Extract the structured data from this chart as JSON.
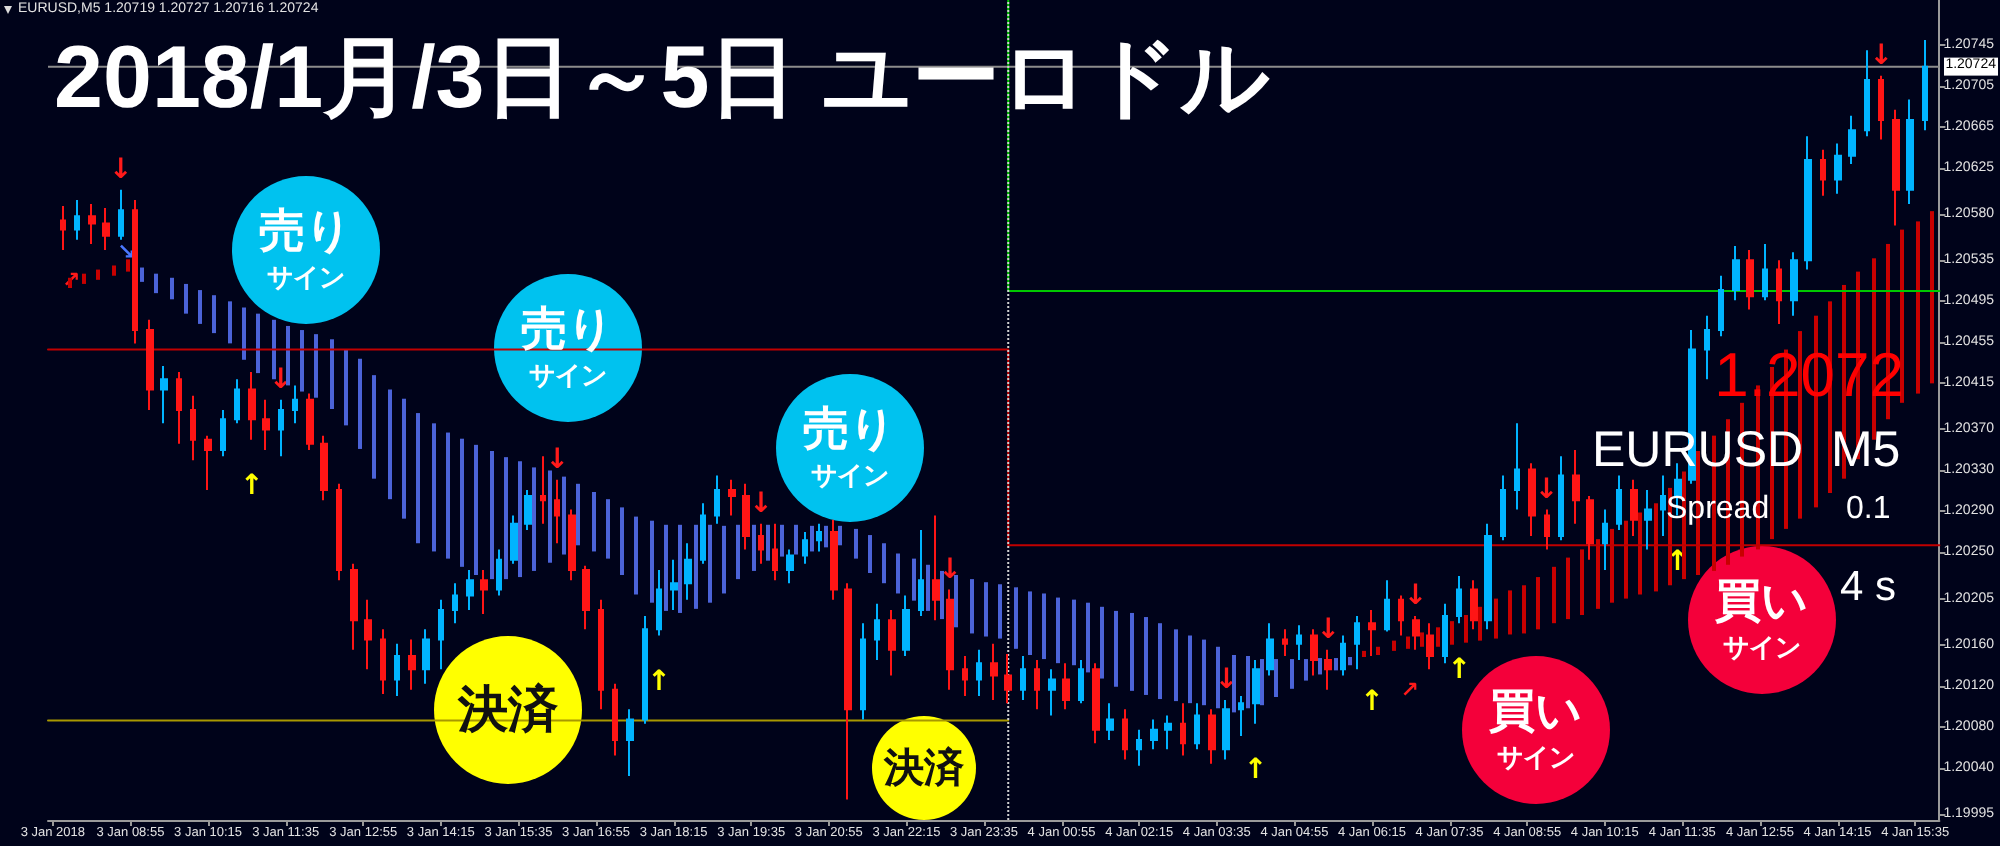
{
  "chart_data": {
    "type": "candlestick",
    "title": "2018/1月/3日～5日 ユーロドル",
    "x": [
      "2018-01-03T07:45",
      "2018-01-03T08:00",
      "2018-01-03T08:15",
      "2018-01-03T08:30",
      "2018-01-03T08:45",
      "2018-01-03T09:00",
      "2018-01-03T09:15",
      "2018-01-03T09:30",
      "2018-01-03T09:45",
      "2018-01-03T10:00",
      "2018-01-03T10:15",
      "2018-01-03T10:30",
      "2018-01-03T10:45",
      "2018-01-03T11:00",
      "2018-01-03T11:15",
      "2018-01-03T11:30",
      "2018-01-03T11:45",
      "2018-01-03T12:00",
      "2018-01-03T12:15",
      "2018-01-03T12:30",
      "2018-01-03T12:45",
      "2018-01-03T13:00",
      "2018-01-03T13:15",
      "2018-01-03T13:30",
      "2018-01-03T13:45",
      "2018-01-03T14:00",
      "2018-01-03T14:15",
      "2018-01-03T14:30",
      "2018-01-03T14:45",
      "2018-01-03T15:00",
      "2018-01-03T15:15",
      "2018-01-03T15:30",
      "2018-01-03T15:45",
      "2018-01-03T16:00",
      "2018-01-03T16:15",
      "2018-01-03T16:30",
      "2018-01-03T16:45",
      "2018-01-03T17:00",
      "2018-01-03T17:15",
      "2018-01-03T17:30",
      "2018-01-03T17:45",
      "2018-01-03T18:00",
      "2018-01-03T18:15",
      "2018-01-03T18:30",
      "2018-01-03T18:45",
      "2018-01-03T19:00",
      "2018-01-03T19:15",
      "2018-01-03T19:30",
      "2018-01-03T19:45",
      "2018-01-03T20:00",
      "2018-01-03T20:15",
      "2018-01-03T20:30",
      "2018-01-03T20:45",
      "2018-01-03T21:00",
      "2018-01-03T21:15",
      "2018-01-03T21:30",
      "2018-01-03T21:45",
      "2018-01-03T22:00",
      "2018-01-03T22:15",
      "2018-01-03T22:30",
      "2018-01-03T22:45",
      "2018-01-03T23:00",
      "2018-01-03T23:15",
      "2018-01-03T23:30",
      "2018-01-03T23:45",
      "2018-01-04T00:00",
      "2018-01-04T00:15",
      "2018-01-04T00:30",
      "2018-01-04T00:45",
      "2018-01-04T01:00",
      "2018-01-04T01:15",
      "2018-01-04T01:30",
      "2018-01-04T01:45",
      "2018-01-04T02:00",
      "2018-01-04T02:15",
      "2018-01-04T02:30",
      "2018-01-04T02:45",
      "2018-01-04T03:00",
      "2018-01-04T03:15",
      "2018-01-04T03:30",
      "2018-01-04T03:45",
      "2018-01-04T04:00",
      "2018-01-04T04:15",
      "2018-01-04T04:30",
      "2018-01-04T04:45",
      "2018-01-04T05:00",
      "2018-01-04T05:15",
      "2018-01-04T05:30",
      "2018-01-04T05:45",
      "2018-01-04T06:00",
      "2018-01-04T06:15",
      "2018-01-04T06:30",
      "2018-01-04T06:45",
      "2018-01-04T07:00",
      "2018-01-04T07:15",
      "2018-01-04T07:30",
      "2018-01-04T07:45",
      "2018-01-04T08:00",
      "2018-01-04T08:15",
      "2018-01-04T08:30",
      "2018-01-04T08:45",
      "2018-01-04T09:00",
      "2018-01-04T09:15",
      "2018-01-04T09:30",
      "2018-01-04T09:45",
      "2018-01-04T10:00",
      "2018-01-04T10:15",
      "2018-01-04T10:30",
      "2018-01-04T10:45",
      "2018-01-04T11:00",
      "2018-01-04T11:15",
      "2018-01-04T11:30",
      "2018-01-04T11:45",
      "2018-01-04T12:00",
      "2018-01-04T12:15",
      "2018-01-04T12:30",
      "2018-01-04T12:45",
      "2018-01-04T13:00",
      "2018-01-04T13:15",
      "2018-01-04T13:30",
      "2018-01-04T13:45",
      "2018-01-04T14:00",
      "2018-01-04T14:15",
      "2018-01-04T14:30",
      "2018-01-04T14:45",
      "2018-01-04T15:00",
      "2018-01-04T15:15",
      "2018-01-04T15:30",
      "2018-01-04T15:45"
    ],
    "ohlc": [
      [
        1.20574,
        1.20588,
        1.20545,
        1.20565
      ],
      [
        1.20565,
        1.20594,
        1.20555,
        1.20578
      ],
      [
        1.20578,
        1.2059,
        1.20551,
        1.20571
      ],
      [
        1.20571,
        1.20586,
        1.20545,
        1.20559
      ],
      [
        1.20559,
        1.20604,
        1.20555,
        1.20584
      ],
      [
        1.20584,
        1.20594,
        1.20454,
        1.20467
      ],
      [
        1.20467,
        1.20477,
        1.20389,
        1.20409
      ],
      [
        1.20409,
        1.20432,
        1.20376,
        1.20419
      ],
      [
        1.20419,
        1.20426,
        1.20356,
        1.20389
      ],
      [
        1.20389,
        1.20403,
        1.2034,
        1.2036
      ],
      [
        1.2036,
        1.20364,
        1.20311,
        1.2035
      ],
      [
        1.2035,
        1.20389,
        1.20344,
        1.2038
      ],
      [
        1.2038,
        1.20419,
        1.20376,
        1.20409
      ],
      [
        1.20409,
        1.20426,
        1.2036,
        1.2038
      ],
      [
        1.2038,
        1.20399,
        1.2035,
        1.2037
      ],
      [
        1.2037,
        1.20399,
        1.20344,
        1.20389
      ],
      [
        1.20389,
        1.20413,
        1.20376,
        1.20399
      ],
      [
        1.20399,
        1.20405,
        1.2035,
        1.20356
      ],
      [
        1.20356,
        1.20364,
        1.20301,
        1.20311
      ],
      [
        1.20311,
        1.20317,
        1.20223,
        1.20233
      ],
      [
        1.20233,
        1.20239,
        1.20155,
        1.20184
      ],
      [
        1.20184,
        1.20204,
        1.20136,
        1.20165
      ],
      [
        1.20165,
        1.20175,
        1.20112,
        1.20126
      ],
      [
        1.20126,
        1.20161,
        1.2011,
        1.20149
      ],
      [
        1.20149,
        1.20165,
        1.20116,
        1.20136
      ],
      [
        1.20136,
        1.20175,
        1.20122,
        1.20165
      ],
      [
        1.20165,
        1.20204,
        1.20136,
        1.20194
      ],
      [
        1.20194,
        1.2022,
        1.20181,
        1.20208
      ],
      [
        1.20208,
        1.20233,
        1.20194,
        1.20223
      ],
      [
        1.20223,
        1.20233,
        1.2019,
        1.20214
      ],
      [
        1.20214,
        1.20253,
        1.20208,
        1.20243
      ],
      [
        1.20243,
        1.20286,
        1.20239,
        1.20278
      ],
      [
        1.20278,
        1.20311,
        1.20272,
        1.20305
      ],
      [
        1.20305,
        1.20344,
        1.20278,
        1.20301
      ],
      [
        1.20301,
        1.20321,
        1.20259,
        1.20286
      ],
      [
        1.20286,
        1.20292,
        1.20223,
        1.20233
      ],
      [
        1.20233,
        1.20237,
        1.20175,
        1.20194
      ],
      [
        1.20194,
        1.20204,
        1.20097,
        1.20116
      ],
      [
        1.20116,
        1.20122,
        1.20052,
        1.20067
      ],
      [
        1.20067,
        1.20097,
        1.20032,
        1.20087
      ],
      [
        1.20087,
        1.20188,
        1.20083,
        1.20175
      ],
      [
        1.20175,
        1.20233,
        1.20169,
        1.20214
      ],
      [
        1.20214,
        1.20243,
        1.20194,
        1.2022
      ],
      [
        1.2022,
        1.20259,
        1.20204,
        1.20243
      ],
      [
        1.20243,
        1.20298,
        1.20239,
        1.20286
      ],
      [
        1.20286,
        1.20325,
        1.20278,
        1.20311
      ],
      [
        1.20311,
        1.20321,
        1.20286,
        1.20305
      ],
      [
        1.20305,
        1.20317,
        1.20253,
        1.20266
      ],
      [
        1.20266,
        1.20278,
        1.20239,
        1.20253
      ],
      [
        1.20253,
        1.20278,
        1.20223,
        1.20233
      ],
      [
        1.20233,
        1.20253,
        1.2022,
        1.20247
      ],
      [
        1.20247,
        1.2027,
        1.20239,
        1.20262
      ],
      [
        1.20262,
        1.20278,
        1.20251,
        1.2027
      ],
      [
        1.2027,
        1.20282,
        1.20204,
        1.20214
      ],
      [
        1.20214,
        1.2022,
        1.20009,
        1.20097
      ],
      [
        1.20097,
        1.20181,
        1.20087,
        1.20165
      ],
      [
        1.20165,
        1.202,
        1.20145,
        1.20184
      ],
      [
        1.20184,
        1.20194,
        1.2013,
        1.20155
      ],
      [
        1.20155,
        1.20208,
        1.20149,
        1.20194
      ],
      [
        1.20194,
        1.20272,
        1.20188,
        1.20223
      ],
      [
        1.20223,
        1.20286,
        1.20184,
        1.20204
      ],
      [
        1.20204,
        1.20214,
        1.20116,
        1.20136
      ],
      [
        1.20136,
        1.20149,
        1.2011,
        1.20126
      ],
      [
        1.20126,
        1.20155,
        1.2011,
        1.20142
      ],
      [
        1.20142,
        1.20161,
        1.20106,
        1.2013
      ],
      [
        1.2013,
        1.20151,
        1.20103,
        1.20116
      ],
      [
        1.20116,
        1.20149,
        1.20106,
        1.20136
      ],
      [
        1.20136,
        1.20145,
        1.20097,
        1.20116
      ],
      [
        1.20116,
        1.20136,
        1.20091,
        1.20126
      ],
      [
        1.20126,
        1.20142,
        1.20097,
        1.20106
      ],
      [
        1.20106,
        1.20145,
        1.20103,
        1.20136
      ],
      [
        1.20136,
        1.20142,
        1.20064,
        1.20077
      ],
      [
        1.20077,
        1.20103,
        1.20067,
        1.20087
      ],
      [
        1.20087,
        1.20097,
        1.20048,
        1.20058
      ],
      [
        1.20058,
        1.20077,
        1.20042,
        1.20067
      ],
      [
        1.20067,
        1.20087,
        1.20058,
        1.20077
      ],
      [
        1.20077,
        1.20091,
        1.20058,
        1.20083
      ],
      [
        1.20083,
        1.20103,
        1.20052,
        1.20064
      ],
      [
        1.20064,
        1.20103,
        1.20058,
        1.20091
      ],
      [
        1.20091,
        1.20097,
        1.20044,
        1.20058
      ],
      [
        1.20058,
        1.20106,
        1.20048,
        1.20097
      ],
      [
        1.20097,
        1.2011,
        1.20071,
        1.20103
      ],
      [
        1.20103,
        1.20145,
        1.20083,
        1.20136
      ],
      [
        1.20136,
        1.20181,
        1.2013,
        1.20165
      ],
      [
        1.20165,
        1.20175,
        1.20149,
        1.20161
      ],
      [
        1.20161,
        1.20179,
        1.20145,
        1.20169
      ],
      [
        1.20169,
        1.20175,
        1.2013,
        1.20145
      ],
      [
        1.20145,
        1.20155,
        1.20116,
        1.20136
      ],
      [
        1.20136,
        1.20169,
        1.2013,
        1.20161
      ],
      [
        1.20161,
        1.20188,
        1.20136,
        1.20181
      ],
      [
        1.20181,
        1.20194,
        1.20149,
        1.20175
      ],
      [
        1.20175,
        1.20223,
        1.20173,
        1.20204
      ],
      [
        1.20204,
        1.20208,
        1.20169,
        1.20184
      ],
      [
        1.20184,
        1.20188,
        1.20155,
        1.20169
      ],
      [
        1.20169,
        1.20181,
        1.20136,
        1.20149
      ],
      [
        1.20149,
        1.202,
        1.20142,
        1.20188
      ],
      [
        1.20188,
        1.20227,
        1.20181,
        1.20214
      ],
      [
        1.20214,
        1.20223,
        1.20175,
        1.20184
      ],
      [
        1.20184,
        1.20278,
        1.20175,
        1.20266
      ],
      [
        1.20266,
        1.20325,
        1.20262,
        1.20311
      ],
      [
        1.20311,
        1.20376,
        1.20292,
        1.20331
      ],
      [
        1.20331,
        1.20337,
        1.20266,
        1.20286
      ],
      [
        1.20286,
        1.20292,
        1.20253,
        1.20266
      ],
      [
        1.20266,
        1.20344,
        1.20262,
        1.20325
      ],
      [
        1.20325,
        1.2035,
        1.20278,
        1.20301
      ],
      [
        1.20301,
        1.20305,
        1.20243,
        1.20259
      ],
      [
        1.20259,
        1.20292,
        1.20233,
        1.20278
      ],
      [
        1.20278,
        1.20325,
        1.20272,
        1.20311
      ],
      [
        1.20311,
        1.20321,
        1.20266,
        1.20282
      ],
      [
        1.20282,
        1.20311,
        1.20253,
        1.20292
      ],
      [
        1.20292,
        1.20325,
        1.20266,
        1.20305
      ],
      [
        1.20305,
        1.20337,
        1.20286,
        1.20321
      ],
      [
        1.20321,
        1.20467,
        1.20317,
        1.20448
      ],
      [
        1.20448,
        1.20481,
        1.20419,
        1.20467
      ],
      [
        1.20467,
        1.2052,
        1.20461,
        1.20506
      ],
      [
        1.20506,
        1.20549,
        1.20496,
        1.20535
      ],
      [
        1.20535,
        1.20545,
        1.20487,
        1.205
      ],
      [
        1.205,
        1.20551,
        1.20496,
        1.20526
      ],
      [
        1.20526,
        1.20535,
        1.20473,
        1.20496
      ],
      [
        1.20496,
        1.20543,
        1.20481,
        1.20535
      ],
      [
        1.20535,
        1.20656,
        1.20526,
        1.20633
      ],
      [
        1.20633,
        1.20643,
        1.20598,
        1.20614
      ],
      [
        1.20614,
        1.20649,
        1.206,
        1.20637
      ],
      [
        1.20637,
        1.20676,
        1.20629,
        1.20662
      ],
      [
        1.20662,
        1.2074,
        1.20656,
        1.20711
      ],
      [
        1.20711,
        1.20715,
        1.20653,
        1.20672
      ],
      [
        1.20672,
        1.20682,
        1.20569,
        1.20604
      ],
      [
        1.20604,
        1.20692,
        1.2059,
        1.20672
      ],
      [
        1.20672,
        1.2075,
        1.20662,
        1.20724
      ]
    ],
    "series": [
      {
        "type": "bar",
        "color": "#4b63d8",
        "x": [
          "2018-01-03T09:05",
          "2018-01-03T09:20",
          "2018-01-03T09:35",
          "2018-01-03T09:50",
          "2018-01-03T10:05",
          "2018-01-03T10:20",
          "2018-01-03T10:35",
          "2018-01-03T10:50",
          "2018-01-03T11:05",
          "2018-01-03T11:20",
          "2018-01-03T11:35",
          "2018-01-03T11:50",
          "2018-01-03T12:05",
          "2018-01-03T12:20",
          "2018-01-03T12:35",
          "2018-01-03T12:50",
          "2018-01-03T13:05",
          "2018-01-03T13:20",
          "2018-01-03T13:35",
          "2018-01-03T13:50",
          "2018-01-03T14:05",
          "2018-01-03T14:20",
          "2018-01-03T14:35",
          "2018-01-03T14:50",
          "2018-01-03T15:05",
          "2018-01-03T15:20",
          "2018-01-03T15:35",
          "2018-01-03T15:50",
          "2018-01-03T16:05",
          "2018-01-03T16:20",
          "2018-01-03T16:35",
          "2018-01-03T16:50",
          "2018-01-03T17:05",
          "2018-01-03T17:20",
          "2018-01-03T17:35",
          "2018-01-03T17:50",
          "2018-01-03T18:05",
          "2018-01-03T18:20",
          "2018-01-03T18:35",
          "2018-01-03T18:50",
          "2018-01-03T19:05",
          "2018-01-03T19:20",
          "2018-01-03T19:35",
          "2018-01-03T19:50",
          "2018-01-03T20:05",
          "2018-01-03T20:20",
          "2018-01-03T20:35",
          "2018-01-03T20:50",
          "2018-01-03T21:05",
          "2018-01-03T21:20",
          "2018-01-03T21:35",
          "2018-01-03T21:50",
          "2018-01-03T22:05",
          "2018-01-03T22:20",
          "2018-01-03T22:35",
          "2018-01-03T22:50",
          "2018-01-03T23:05",
          "2018-01-03T23:20",
          "2018-01-03T23:35",
          "2018-01-03T23:50",
          "2018-01-04T00:05",
          "2018-01-04T00:20",
          "2018-01-04T00:35",
          "2018-01-04T00:50",
          "2018-01-04T01:05",
          "2018-01-04T01:20",
          "2018-01-04T01:35",
          "2018-01-04T01:50",
          "2018-01-04T02:05",
          "2018-01-04T02:20",
          "2018-01-04T02:35",
          "2018-01-04T02:50",
          "2018-01-04T03:05",
          "2018-01-04T03:20",
          "2018-01-04T03:35",
          "2018-01-04T03:50",
          "2018-01-04T04:05",
          "2018-01-04T04:20",
          "2018-01-04T04:35",
          "2018-01-04T04:50",
          "2018-01-04T05:05",
          "2018-01-04T05:20",
          "2018-01-04T05:35",
          "2018-01-04T05:50"
        ],
        "base": [
          1.20514,
          1.20503,
          1.20497,
          1.20483,
          1.20473,
          1.20464,
          1.20454,
          1.20438,
          1.20425,
          1.20419,
          1.20413,
          1.20407,
          1.20401,
          1.2039,
          1.20374,
          1.20351,
          1.20322,
          1.20302,
          1.20283,
          1.20259,
          1.20251,
          1.20244,
          1.20236,
          1.20228,
          1.20224,
          1.20224,
          1.20226,
          1.20232,
          1.2024,
          1.20248,
          1.20257,
          1.20251,
          1.20244,
          1.20228,
          1.20209,
          1.20201,
          1.20193,
          1.20191,
          1.20195,
          1.20201,
          1.2021,
          1.20224,
          1.20232,
          1.20242,
          1.20246,
          1.20248,
          1.20251,
          1.20255,
          1.20257,
          1.20244,
          1.2023,
          1.2022,
          1.2021,
          1.20203,
          1.20193,
          1.20185,
          1.20177,
          1.20171,
          1.20168,
          1.20166,
          1.20156,
          1.2015,
          1.20146,
          1.20142,
          1.2014,
          1.20133,
          1.20127,
          1.20119,
          1.20115,
          1.20111,
          1.20107,
          1.20105,
          1.20103,
          1.20101,
          1.20098,
          1.20094,
          1.20098,
          1.20101,
          1.20109,
          1.20117,
          1.20125,
          1.20131,
          1.20135,
          1.2014
        ],
        "values": [
          0.00014,
          0.00019,
          0.00021,
          0.00029,
          0.00033,
          0.00037,
          0.00041,
          0.00051,
          0.00058,
          0.00058,
          0.00058,
          0.0006,
          0.00062,
          0.00068,
          0.00074,
          0.00088,
          0.00101,
          0.00107,
          0.00117,
          0.00127,
          0.00125,
          0.00123,
          0.00125,
          0.00127,
          0.00125,
          0.00119,
          0.00113,
          0.00101,
          0.0009,
          0.00076,
          0.0006,
          0.00058,
          0.00058,
          0.00066,
          0.00076,
          0.0008,
          0.00084,
          0.00086,
          0.00082,
          0.00076,
          0.00066,
          0.00053,
          0.00045,
          0.00035,
          0.00031,
          0.00029,
          0.00025,
          0.00021,
          0.00019,
          0.00029,
          0.00037,
          0.00039,
          0.00039,
          0.00041,
          0.00045,
          0.00047,
          0.00051,
          0.00053,
          0.00053,
          0.00053,
          0.0006,
          0.00062,
          0.00064,
          0.00064,
          0.00064,
          0.00068,
          0.0007,
          0.00074,
          0.00076,
          0.00076,
          0.00074,
          0.0007,
          0.00066,
          0.00064,
          0.0006,
          0.00056,
          0.00051,
          0.00045,
          0.00037,
          0.00029,
          0.00021,
          0.00016,
          0.00012,
          8e-05
        ]
      },
      {
        "type": "bar",
        "color": "#c80000",
        "x": [
          "2018-01-03T07:50",
          "2018-01-03T08:05",
          "2018-01-03T08:20",
          "2018-01-03T08:35",
          "2018-01-03T08:50",
          "2018-01-04T06:05",
          "2018-01-04T06:20",
          "2018-01-04T06:35",
          "2018-01-04T06:50",
          "2018-01-04T07:05",
          "2018-01-04T07:20",
          "2018-01-04T07:35",
          "2018-01-04T07:50",
          "2018-01-04T08:05",
          "2018-01-04T08:20",
          "2018-01-04T08:35",
          "2018-01-04T08:50",
          "2018-01-04T09:05",
          "2018-01-04T09:20",
          "2018-01-04T09:35",
          "2018-01-04T09:50",
          "2018-01-04T10:05",
          "2018-01-04T10:20",
          "2018-01-04T10:35",
          "2018-01-04T10:50",
          "2018-01-04T11:05",
          "2018-01-04T11:20",
          "2018-01-04T11:35",
          "2018-01-04T11:50",
          "2018-01-04T12:05",
          "2018-01-04T12:20",
          "2018-01-04T12:35",
          "2018-01-04T12:50",
          "2018-01-04T13:05",
          "2018-01-04T13:20",
          "2018-01-04T13:35",
          "2018-01-04T13:50",
          "2018-01-04T14:05",
          "2018-01-04T14:20",
          "2018-01-04T14:35",
          "2018-01-04T14:50",
          "2018-01-04T15:05",
          "2018-01-04T15:20",
          "2018-01-04T15:35",
          "2018-01-04T15:50"
        ],
        "base": [
          1.20508,
          1.20512,
          1.20516,
          1.2052,
          1.20524,
          1.20148,
          1.2015,
          1.20154,
          1.20156,
          1.20158,
          1.20158,
          1.2016,
          1.20162,
          1.20164,
          1.20166,
          1.2017,
          1.20171,
          1.20175,
          1.20181,
          1.20185,
          1.20189,
          1.20195,
          1.20201,
          1.20205,
          1.20209,
          1.20212,
          1.20218,
          1.20224,
          1.20228,
          1.20232,
          1.20238,
          1.20246,
          1.20253,
          1.20263,
          1.20273,
          1.20283,
          1.20294,
          1.20308,
          1.20322,
          1.20341,
          1.2036,
          1.2038,
          1.20396,
          1.20405,
          1.20415
        ],
        "values": [
          0.0001,
          0.0001,
          0.0001,
          0.0001,
          0.00012,
          6e-05,
          8e-05,
          0.0001,
          0.00012,
          0.00014,
          0.00019,
          0.00023,
          0.00027,
          0.00033,
          0.00039,
          0.00043,
          0.00047,
          0.00051,
          0.00055,
          0.0006,
          0.00064,
          0.00068,
          0.00072,
          0.00076,
          0.0008,
          0.00086,
          0.00095,
          0.00105,
          0.00121,
          0.00132,
          0.00142,
          0.0015,
          0.0016,
          0.00168,
          0.00175,
          0.00183,
          0.00187,
          0.00187,
          0.00189,
          0.00183,
          0.00177,
          0.00171,
          0.00169,
          0.00168,
          0.00168
        ]
      },
      {
        "type": "line",
        "color": "#c00000",
        "x": [
          "2018-01-03T07:30",
          "2018-01-04T00:00",
          "2018-01-04T00:00",
          "2018-01-04T16:00"
        ],
        "values": [
          1.20448,
          1.20448,
          1.20257,
          1.20257
        ]
      },
      {
        "type": "line",
        "color": "#00c800",
        "x": [
          "2018-01-04T00:00",
          "2018-01-04T00:00",
          "2018-01-04T16:00"
        ],
        "values": [
          1.20789,
          1.20505,
          1.20505
        ]
      },
      {
        "type": "line",
        "color": "#a89800",
        "x": [
          "2018-01-03T07:30",
          "2018-01-04T00:00"
        ],
        "values": [
          1.20086,
          1.20086
        ]
      }
    ],
    "xlim": [
      "2018-01-03T07:30",
      "2018-01-04T16:00"
    ],
    "xticks": [
      {
        "value": "2018-01-03T07:35",
        "label": "3 Jan 2018"
      },
      {
        "value": "2018-01-03T08:55",
        "label": "3 Jan 08:55"
      },
      {
        "value": "2018-01-03T10:15",
        "label": "3 Jan 10:15"
      },
      {
        "value": "2018-01-03T11:35",
        "label": "3 Jan 11:35"
      },
      {
        "value": "2018-01-03T12:55",
        "label": "3 Jan 12:55"
      },
      {
        "value": "2018-01-03T14:15",
        "label": "3 Jan 14:15"
      },
      {
        "value": "2018-01-03T15:35",
        "label": "3 Jan 15:35"
      },
      {
        "value": "2018-01-03T16:55",
        "label": "3 Jan 16:55"
      },
      {
        "value": "2018-01-03T18:15",
        "label": "3 Jan 18:15"
      },
      {
        "value": "2018-01-03T19:35",
        "label": "3 Jan 19:35"
      },
      {
        "value": "2018-01-03T20:55",
        "label": "3 Jan 20:55"
      },
      {
        "value": "2018-01-03T22:15",
        "label": "3 Jan 22:15"
      },
      {
        "value": "2018-01-03T23:35",
        "label": "3 Jan 23:35"
      },
      {
        "value": "2018-01-04T00:55",
        "label": "4 Jan 00:55"
      },
      {
        "value": "2018-01-04T02:15",
        "label": "4 Jan 02:15"
      },
      {
        "value": "2018-01-04T03:35",
        "label": "4 Jan 03:35"
      },
      {
        "value": "2018-01-04T04:55",
        "label": "4 Jan 04:55"
      },
      {
        "value": "2018-01-04T06:15",
        "label": "4 Jan 06:15"
      },
      {
        "value": "2018-01-04T07:35",
        "label": "4 Jan 07:35"
      },
      {
        "value": "2018-01-04T08:55",
        "label": "4 Jan 08:55"
      },
      {
        "value": "2018-01-04T10:15",
        "label": "4 Jan 10:15"
      },
      {
        "value": "2018-01-04T11:35",
        "label": "4 Jan 11:35"
      },
      {
        "value": "2018-01-04T12:55",
        "label": "4 Jan 12:55"
      },
      {
        "value": "2018-01-04T14:15",
        "label": "4 Jan 14:15"
      },
      {
        "value": "2018-01-04T15:35",
        "label": "4 Jan 15:35"
      }
    ],
    "ylim": [
      1.19989,
      1.20789
    ],
    "yticks": [
      1.19995,
      {
        "value": 1.2004,
        "label": "1.20040"
      },
      {
        "value": 1.2008,
        "label": "1.20080"
      },
      {
        "value": 1.2012,
        "label": "1.20120"
      },
      {
        "value": 1.2016,
        "label": "1.20160"
      },
      1.20205,
      {
        "value": 1.2025,
        "label": "1.20250"
      },
      {
        "value": 1.2029,
        "label": "1.20290"
      },
      {
        "value": 1.2033,
        "label": "1.20330"
      },
      {
        "value": 1.2037,
        "label": "1.20370"
      },
      1.20415,
      1.20455,
      1.20495,
      1.20535,
      {
        "value": 1.2058,
        "label": "1.20580"
      },
      1.20625,
      1.20665,
      1.20705,
      1.20745
    ],
    "ref_lines": [
      {
        "axis": "y",
        "value": 1.20724,
        "label": "1.20724",
        "color": "#8c8c8c"
      },
      {
        "axis": "x",
        "value": "2018-01-04T00:00",
        "color": "#d0d0d0",
        "line_style": "dotted"
      }
    ],
    "annotations": [
      "EURUSD,M5 1.20719 1.20727 1.20716 1.20724",
      "1.2072",
      "EURUSD  M5",
      "Spread",
      "0.1",
      "4 s",
      "売り",
      "サイン",
      "売り",
      "サイン",
      "売り",
      "サイン",
      "決済",
      "決済",
      "買い",
      "サイン",
      "買い",
      "サイン",
      {
        "text": "↓",
        "x": "2018-01-03T08:45",
        "y": 1.20604
      },
      {
        "text": "↓",
        "x": "2018-01-03T11:30",
        "y": 1.20399
      },
      {
        "text": "↓",
        "x": "2018-01-03T16:15",
        "y": 1.20321
      },
      {
        "text": "↓",
        "x": "2018-01-03T19:45",
        "y": 1.20278
      },
      {
        "text": "↓",
        "x": "2018-01-03T23:00",
        "y": 1.20214
      },
      {
        "text": "↓",
        "x": "2018-01-04T03:45",
        "y": 1.20106
      },
      {
        "text": "↓",
        "x": "2018-01-04T05:30",
        "y": 1.20155
      },
      {
        "text": "↓",
        "x": "2018-01-04T07:00",
        "y": 1.20188
      },
      {
        "text": "↓",
        "x": "2018-01-04T09:15",
        "y": 1.20292
      },
      {
        "text": "↓",
        "x": "2018-01-04T15:00",
        "y": 1.20715
      },
      {
        "text": "↑",
        "x": "2018-01-03T11:00",
        "y": 1.2036
      },
      {
        "text": "↑",
        "x": "2018-01-03T18:00",
        "y": 1.20169
      },
      {
        "text": "↑",
        "x": "2018-01-04T04:15",
        "y": 1.20083
      },
      {
        "text": "↑",
        "x": "2018-01-04T06:15",
        "y": 1.20149
      },
      {
        "text": "↑",
        "x": "2018-01-04T07:45",
        "y": 1.20181
      },
      {
        "text": "↑",
        "x": "2018-01-04T11:30",
        "y": 1.20286
      },
      {
        "text": "↗",
        "x": "2018-01-03T08:00",
        "y": 1.20555
      },
      {
        "text": "↗",
        "x": "2018-01-04T07:00",
        "y": 1.20155
      },
      {
        "text": "↘",
        "x": "2018-01-03T09:05",
        "y": 1.20528
      }
    ]
  }
}
